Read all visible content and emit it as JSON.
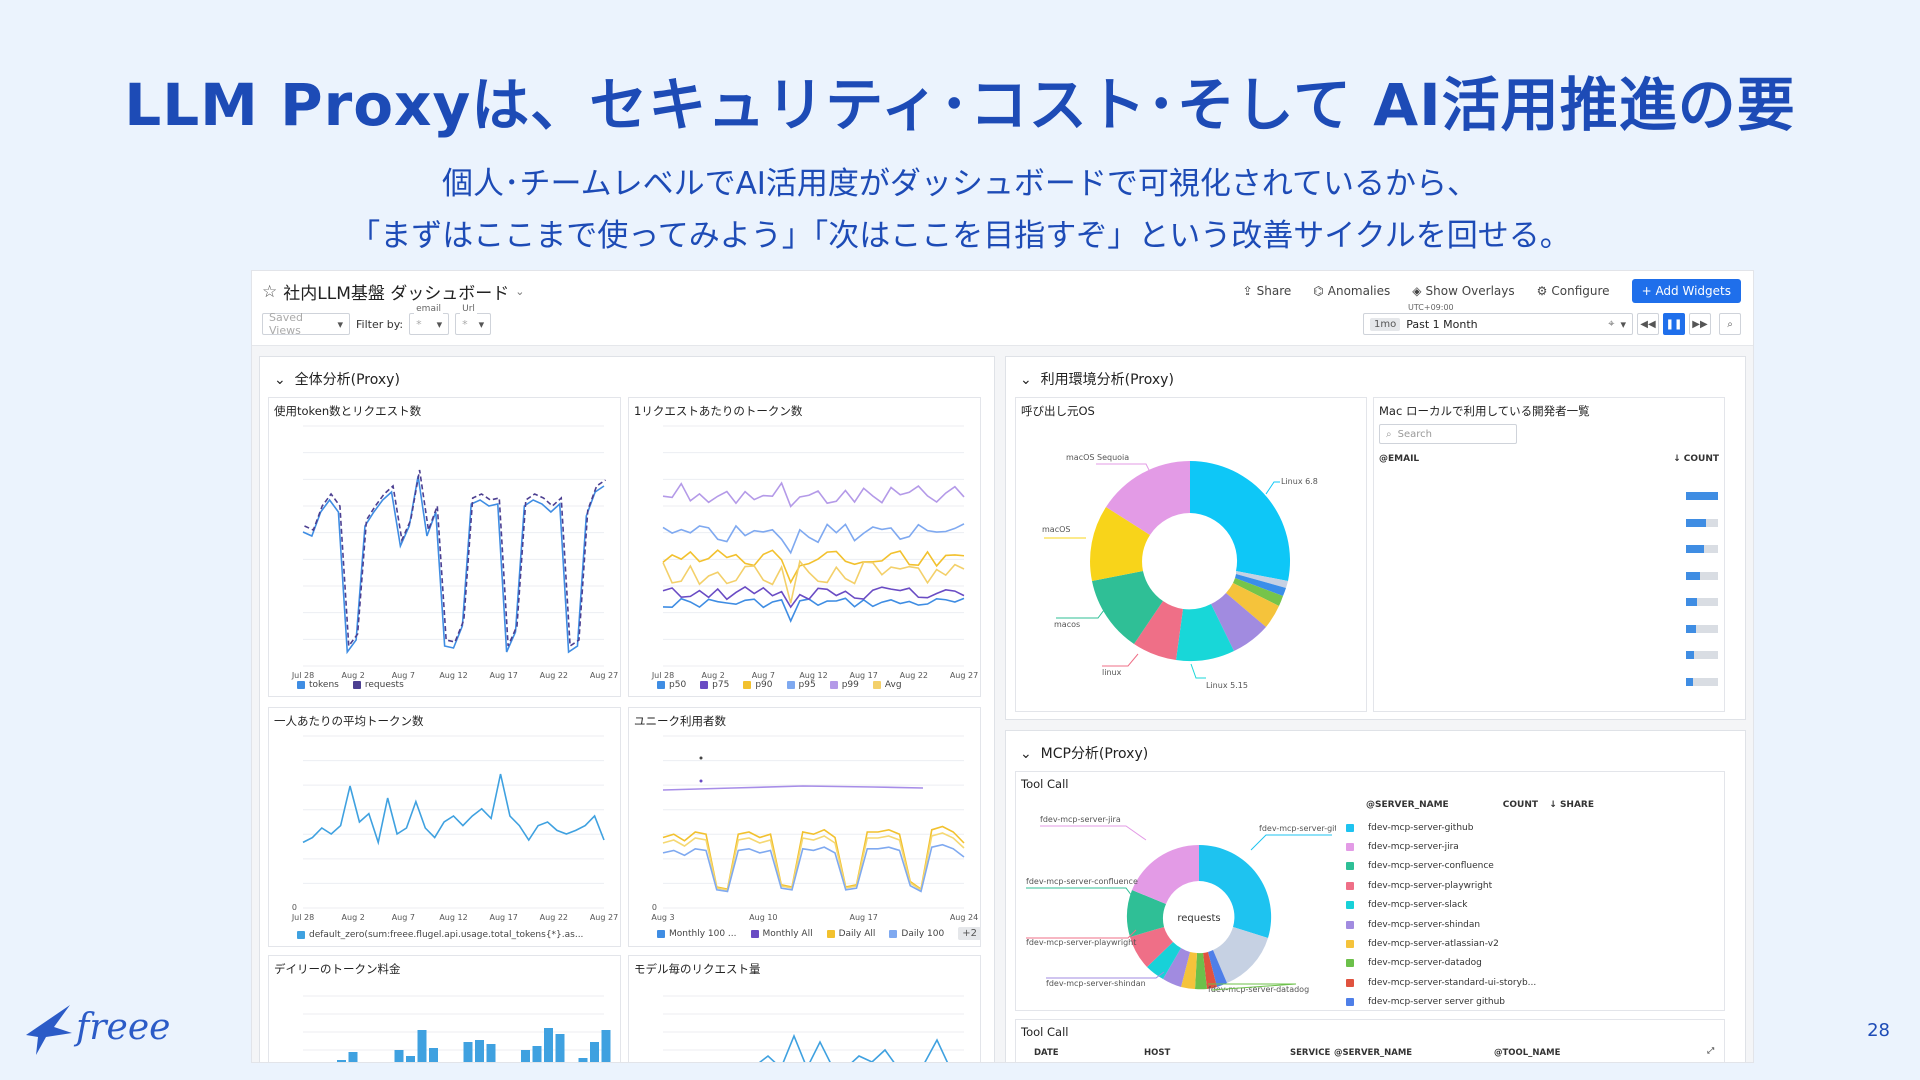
{
  "slide": {
    "title": "LLM Proxyは、セキュリティ･コスト･そして AI活用推進の要",
    "subtitle_line1": "個人･チームレベルでAI活用度がダッシュボードで可視化されているから、",
    "subtitle_line2": "「まずはここまで使ってみよう」「次はここを目指すぞ」という改善サイクルを回せる。",
    "logo_text": "freee",
    "page_number": "28"
  },
  "dashboard": {
    "title": "社内LLM基盤 ダッシュボード",
    "actions": [
      "Share",
      "Anomalies",
      "Show Overlays",
      "Configure"
    ],
    "add_widgets": "Add Widgets",
    "saved_views": "Saved Views",
    "filter_by": "Filter by:",
    "filters": [
      {
        "label": "email",
        "value": "*"
      },
      {
        "label": "Url",
        "value": "*"
      }
    ],
    "timezone": "UTC+09:00",
    "time_tag": "1mo",
    "time_range": "Past 1 Month"
  },
  "groups": {
    "overall": "全体分析(Proxy)",
    "env": "利用環境分析(Proxy)",
    "mcp": "MCP分析(Proxy)"
  },
  "x_ticks": [
    "Jul 28",
    "Aug 2",
    "Aug 7",
    "Aug 12",
    "Aug 17",
    "Aug 22",
    "Aug 27"
  ],
  "x_ticks_users": [
    "Aug 3",
    "Aug 10",
    "Aug 17",
    "Aug 24"
  ],
  "y_zero": "0",
  "panels": {
    "tokens_requests": {
      "title": "使用token数とリクエスト数",
      "legend": [
        "tokens",
        "requests"
      ],
      "colors": [
        "#3f8de3",
        "#4c3f91"
      ]
    },
    "tokens_per_request": {
      "title": "1リクエストあたりのトークン数",
      "legend": [
        "p50",
        "p75",
        "p90",
        "p95",
        "p99",
        "Avg"
      ],
      "colors": [
        "#3f8de3",
        "#6a4cc4",
        "#f2c12e",
        "#7fa9f0",
        "#b49ae8",
        "#f3d06a"
      ]
    },
    "avg_tokens": {
      "title": "一人あたりの平均トークン数",
      "legend": [
        "default_zero(sum:freee.flugel.api.usage.total_tokens{*}.as..."
      ],
      "colors": [
        "#3fa1e0"
      ]
    },
    "unique_users": {
      "title": "ユニーク利用者数",
      "legend": [
        "Monthly 100 ...",
        "Monthly All",
        "Daily All",
        "Daily 100"
      ],
      "legend_more": "+2",
      "colors": [
        "#3f8de3",
        "#6a4cc4",
        "#f2c12e",
        "#7fa9f0"
      ]
    },
    "daily_cost": {
      "title": "デイリーのトークン料金"
    },
    "model_requests": {
      "title": "モデル毎のリクエスト量"
    },
    "os": {
      "title": "呼び出し元OS",
      "labels": [
        "macOS Sequoia",
        "Linux 6.8",
        "macOS",
        "macos",
        "linux",
        "Linux 5.15"
      ]
    },
    "mac_devs": {
      "title": "Mac ローカルで利用している開発者一覧",
      "search_placeholder": "Search",
      "col_email": "@EMAIL",
      "col_count": "COUNT",
      "bar_fractions": [
        1.0,
        0.62,
        0.55,
        0.45,
        0.35,
        0.3,
        0.26,
        0.22
      ]
    },
    "tool_call": {
      "title": "Tool Call",
      "center_label": "requests",
      "col_server": "@SERVER_NAME",
      "col_count": "COUNT",
      "col_share": "SHARE",
      "servers": [
        {
          "name": "fdev-mcp-server-github",
          "color": "#1ec3f0"
        },
        {
          "name": "fdev-mcp-server-jira",
          "color": "#e39be6"
        },
        {
          "name": "fdev-mcp-server-confluence",
          "color": "#2fbf96"
        },
        {
          "name": "fdev-mcp-server-playwright",
          "color": "#ef6f87"
        },
        {
          "name": "fdev-mcp-server-slack",
          "color": "#18d1d8"
        },
        {
          "name": "fdev-mcp-server-shindan",
          "color": "#a18be0"
        },
        {
          "name": "fdev-mcp-server-atlassian-v2",
          "color": "#f5c33b"
        },
        {
          "name": "fdev-mcp-server-datadog",
          "color": "#6cc04a"
        },
        {
          "name": "fdev-mcp-server-standard-ui-storyb...",
          "color": "#e0533f"
        },
        {
          "name": "fdev-mcp-server server github",
          "color": "#4f7fe8"
        }
      ],
      "callouts": [
        "fdev-mcp-server-jira",
        "fdev-mcp-server-github",
        "fdev-mcp-server-confluence",
        "fdev-mcp-server-playwright",
        "fdev-mcp-server-shindan",
        "fdev-mcp-server-datadog"
      ]
    },
    "tool_call_table": {
      "title": "Tool Call",
      "columns": [
        "DATE",
        "HOST",
        "SERVICE",
        "@SERVER_NAME",
        "@TOOL_NAME"
      ]
    }
  }
}
